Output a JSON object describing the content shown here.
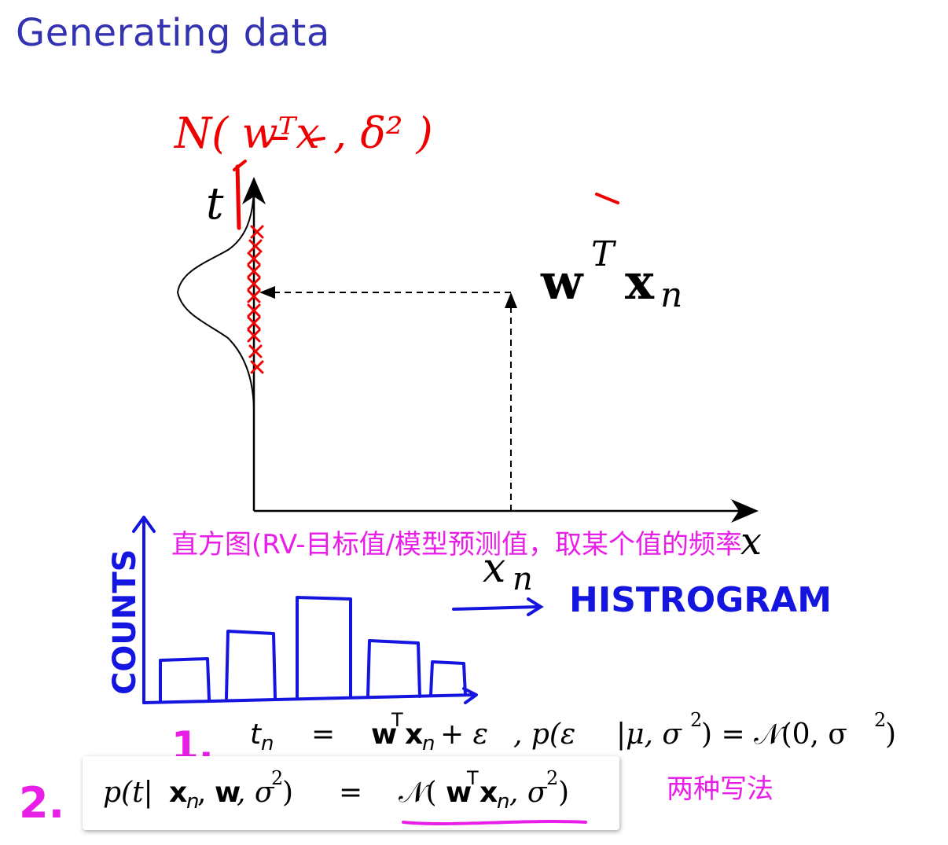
{
  "slide": {
    "title": "Generating data"
  },
  "figure": {
    "t_axis_label": "t",
    "x_axis_label": "x",
    "x_n_label": "x",
    "x_n_subscript": "n",
    "wtx_base_w": "w",
    "wtx_sup": "T",
    "wtx_base_x": "x",
    "wtx_sub": "n"
  },
  "annotations": {
    "normal_note": "N( wᵀx , δ² )",
    "histogram_note_cn": "直方图(RV-目标值/模型预测值，取某个值的频率",
    "histogram_label": "HISTROGRAM",
    "counts_label": "COUNTS",
    "two_ways_cn": "两种写法",
    "marker_1": "1.",
    "marker_2": "2."
  },
  "equations": {
    "eq1": {
      "lhs": "t",
      "lhs_sub": "n",
      "eq": "=",
      "w": "w",
      "T": "T",
      "x": "x",
      "n": "n",
      "plus_eps": " + ε",
      "comma_p": ",  p(ε",
      "mid": "|μ, σ",
      "sq": "2",
      "rhs": ") = 𝒩(0, σ",
      "sq2": "2",
      "close": ")"
    },
    "eq2": {
      "p_open": "p(t|",
      "x": "x",
      "n": "n",
      "comma_w": ", ",
      "w": "w",
      "sigma": ", σ",
      "sq": "2",
      "close": ")",
      "eq": "=",
      "N_open": "𝒩(",
      "w2": "w",
      "T": "T",
      "x2": "x",
      "n2": "n",
      "sigma2": ", σ",
      "sq2": "2",
      "close2": ")"
    }
  },
  "colors": {
    "title": "#3333b2",
    "ink_red": "#ee0000",
    "ink_blue": "#1515e0",
    "ink_magenta": "#e81ee8",
    "axis": "#000000"
  }
}
